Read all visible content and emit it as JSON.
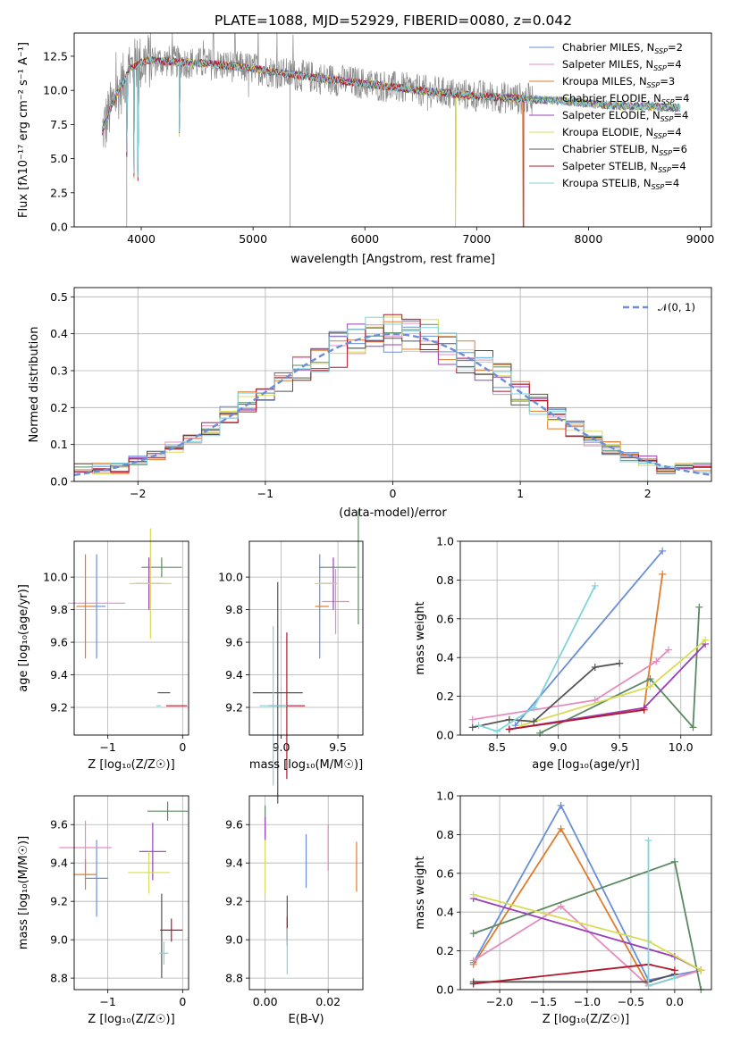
{
  "title": "PLATE=1088, MJD=52929, FIBERID=0080, z=0.042",
  "colors": {
    "c0": "#6a8fd8",
    "c1": "#e58cbf",
    "c2": "#e07b2a",
    "c3": "#5b8a62",
    "c4": "#9b3fb8",
    "c5": "#d8dc55",
    "c6": "#555555",
    "c7": "#b2182b",
    "c8": "#7fd3dc",
    "data": "#888888",
    "grid": "#b0b0b0",
    "normal": "#6a8fd8"
  },
  "chart_data": [
    {
      "type": "line",
      "name": "spectrum",
      "title": "PLATE=1088, MJD=52929, FIBERID=0080, z=0.042",
      "xlabel": "wavelength [Angstrom, rest frame]",
      "ylabel": "Flux [fλ10⁻¹⁷ erg cm⁻² s⁻¹ A⁻¹]",
      "xlim": [
        3400,
        9100
      ],
      "ylim": [
        0,
        14.2
      ],
      "xticks": [
        "4000",
        "5000",
        "6000",
        "7000",
        "8000",
        "9000"
      ],
      "yticks": [
        "0.0",
        "2.5",
        "5.0",
        "7.5",
        "10.0",
        "12.5"
      ],
      "grid": false,
      "legend_position": "top-right",
      "legend": [
        {
          "label": "Chabrier MILES, N",
          "sub": "SSP",
          "suffix": "=2"
        },
        {
          "label": "Salpeter MILES, N",
          "sub": "SSP",
          "suffix": "=4"
        },
        {
          "label": "Kroupa MILES, N",
          "sub": "SSP",
          "suffix": "=3"
        },
        {
          "label": "Chabrier ELODIE, N",
          "sub": "SSP",
          "suffix": "=4"
        },
        {
          "label": "Salpeter ELODIE, N",
          "sub": "SSP",
          "suffix": "=4"
        },
        {
          "label": "Kroupa ELODIE, N",
          "sub": "SSP",
          "suffix": "=4"
        },
        {
          "label": "Chabrier STELIB, N",
          "sub": "SSP",
          "suffix": "=6"
        },
        {
          "label": "Salpeter STELIB, N",
          "sub": "SSP",
          "suffix": "=4"
        },
        {
          "label": "Kroupa STELIB, N",
          "sub": "SSP",
          "suffix": "=4"
        }
      ],
      "continuum": [
        [
          3650,
          7.0
        ],
        [
          3750,
          9.2
        ],
        [
          3900,
          11.6
        ],
        [
          4050,
          12.2
        ],
        [
          4300,
          12.1
        ],
        [
          4500,
          12.0
        ],
        [
          4800,
          11.8
        ],
        [
          5000,
          11.6
        ],
        [
          5300,
          11.2
        ],
        [
          5600,
          10.9
        ],
        [
          5900,
          10.6
        ],
        [
          6200,
          10.3
        ],
        [
          6600,
          9.9
        ],
        [
          7000,
          9.6
        ],
        [
          7400,
          9.4
        ],
        [
          7800,
          9.2
        ],
        [
          8200,
          8.9
        ],
        [
          8600,
          8.8
        ],
        [
          8820,
          8.7
        ]
      ],
      "dips": [
        {
          "x": 3680,
          "y": 5.8
        },
        {
          "x": 3870,
          "y": 0.0
        },
        {
          "x": 3935,
          "y": 3.5
        },
        {
          "x": 3970,
          "y": 3.4
        },
        {
          "x": 4340,
          "y": 7.5
        },
        {
          "x": 4960,
          "y": 9.5
        },
        {
          "x": 5330,
          "y": 0.0
        },
        {
          "x": 6810,
          "y": 0.0
        },
        {
          "x": 7420,
          "y": 0.0
        },
        {
          "x": 6560,
          "y": 8.5
        }
      ],
      "noise_amplitude": 1.2,
      "noise_range": [
        3650,
        7500
      ]
    },
    {
      "type": "histogram",
      "name": "residuals",
      "xlabel": "(data-model)/error",
      "ylabel": "Normed distribution",
      "xlim": [
        -2.5,
        2.5
      ],
      "ylim": [
        0,
        0.525
      ],
      "xticks": [
        "−2",
        "−1",
        "0",
        "1",
        "2"
      ],
      "yticks": [
        "0.0",
        "0.1",
        "0.2",
        "0.3",
        "0.4",
        "0.5"
      ],
      "grid": true,
      "legend_position": "top-right",
      "legend": [
        {
          "label": "𝒩(0, 1)"
        }
      ],
      "bins": 35,
      "normal": {
        "mean": 0,
        "sigma": 1
      }
    },
    {
      "type": "errorbar",
      "name": "age-vs-Z",
      "xlabel": "Z [log₁₀(Z/Z☉)]",
      "ylabel": "age  [log₁₀(age/yr)]",
      "xlim": [
        -1.45,
        0.08
      ],
      "ylim": [
        9.03,
        10.22
      ],
      "xticks": [
        {
          "v": -1,
          "t": "−1"
        },
        {
          "v": 0,
          "t": "0"
        }
      ],
      "yticks": [
        {
          "v": 9.2,
          "t": "9.2"
        },
        {
          "v": 9.4,
          "t": "9.4"
        },
        {
          "v": 9.6,
          "t": "9.6"
        },
        {
          "v": 9.8,
          "t": "9.8"
        },
        {
          "v": 10.0,
          "t": "10.0"
        }
      ],
      "points": [
        {
          "c": "c0",
          "x": -1.15,
          "xe": 0.12,
          "y": 9.82,
          "ye": 0.32
        },
        {
          "c": "c1",
          "x": -1.15,
          "xe": 0.38,
          "y": 9.84,
          "ye": 0.0
        },
        {
          "c": "c2",
          "x": -1.3,
          "xe": 0.12,
          "y": 9.82,
          "ye": 0.32
        },
        {
          "c": "c3",
          "x": -0.28,
          "xe": 0.27,
          "y": 10.06,
          "ye": 0.06
        },
        {
          "c": "c4",
          "x": -0.45,
          "xe": 0.18,
          "y": 9.96,
          "ye": 0.16
        },
        {
          "c": "c5",
          "x": -0.43,
          "xe": 0.28,
          "y": 9.96,
          "ye": 0.34
        },
        {
          "c": "c6",
          "x": -0.25,
          "xe": 0.0,
          "y": 9.29,
          "ye": 0.0
        },
        {
          "c": "c7",
          "x": -0.08,
          "xe": 0.14,
          "y": 9.21,
          "ye": 0.0
        },
        {
          "c": "c8",
          "x": -0.32,
          "xe": 0.03,
          "y": 9.21,
          "ye": 0.0
        }
      ]
    },
    {
      "type": "errorbar",
      "name": "age-vs-mass",
      "xlabel": "mass [log₁₀(M/M☉)]",
      "ylabel": "",
      "xlim": [
        8.72,
        9.72
      ],
      "ylim": [
        9.03,
        10.22
      ],
      "xticks": [
        {
          "v": 9.0,
          "t": "9.0"
        },
        {
          "v": 9.5,
          "t": "9.5"
        }
      ],
      "yticks": [
        {
          "v": 9.2,
          "t": "9.2"
        },
        {
          "v": 9.4,
          "t": "9.4"
        },
        {
          "v": 9.6,
          "t": "9.6"
        },
        {
          "v": 9.8,
          "t": "9.8"
        },
        {
          "v": 10.0,
          "t": "10.0"
        }
      ],
      "points": [
        {
          "c": "c0",
          "x": 9.34,
          "xe": 0.0,
          "y": 9.82,
          "ye": 0.32
        },
        {
          "c": "c1",
          "x": 9.48,
          "xe": 0.12,
          "y": 9.85,
          "ye": 0.2
        },
        {
          "c": "c2",
          "x": 9.36,
          "xe": 0.06,
          "y": 9.82,
          "ye": 0.0
        },
        {
          "c": "c3",
          "x": 9.68,
          "xe": 0.0,
          "y": 10.06,
          "ye": 0.35
        },
        {
          "c": "c4",
          "x": 9.46,
          "xe": 0.0,
          "y": 9.96,
          "ye": 0.16
        },
        {
          "c": "c5",
          "x": 9.35,
          "xe": 0.0,
          "y": 9.96,
          "ye": 0.0
        },
        {
          "c": "c6",
          "x": 8.97,
          "xe": 0.22,
          "y": 9.29,
          "ye": 0.68
        },
        {
          "c": "c7",
          "x": 9.05,
          "xe": 0.16,
          "y": 9.21,
          "ye": 0.45
        },
        {
          "c": "c8",
          "x": 8.93,
          "xe": 0.12,
          "y": 9.21,
          "ye": 0.49
        },
        {
          "c": "c3",
          "x": 9.5,
          "xe": 0.16,
          "y": 10.06,
          "ye": 0.0
        },
        {
          "c": "c4",
          "x": 9.42,
          "xe": 0.07,
          "y": 9.96,
          "ye": 0.0
        },
        {
          "c": "c5",
          "x": 9.42,
          "xe": 0.07,
          "y": 9.96,
          "ye": 0.0
        }
      ]
    },
    {
      "type": "line",
      "name": "mass-weight-vs-age",
      "xlabel": "age  [log₁₀(age/yr)]",
      "ylabel": "mass weight",
      "xlim": [
        8.2,
        10.25
      ],
      "ylim": [
        0,
        1.0
      ],
      "xticks": [
        {
          "v": 8.5,
          "t": "8.5"
        },
        {
          "v": 9.0,
          "t": "9.0"
        },
        {
          "v": 9.5,
          "t": "9.5"
        },
        {
          "v": 10.0,
          "t": "10.0"
        }
      ],
      "yticks": [
        {
          "v": 0,
          "t": "0.0"
        },
        {
          "v": 0.2,
          "t": "0.2"
        },
        {
          "v": 0.4,
          "t": "0.4"
        },
        {
          "v": 0.6,
          "t": "0.6"
        },
        {
          "v": 0.8,
          "t": "0.8"
        },
        {
          "v": 1.0,
          "t": "1.0"
        }
      ],
      "grid": true,
      "series": [
        {
          "c": "c0",
          "x": [
            8.65,
            9.85
          ],
          "y": [
            0.05,
            0.95
          ]
        },
        {
          "c": "c2",
          "x": [
            8.6,
            9.7,
            9.85
          ],
          "y": [
            0.03,
            0.14,
            0.83
          ]
        },
        {
          "c": "c1",
          "x": [
            8.3,
            9.3,
            9.8,
            9.9
          ],
          "y": [
            0.08,
            0.18,
            0.38,
            0.44
          ]
        },
        {
          "c": "c3",
          "x": [
            8.85,
            9.75,
            10.1,
            10.15
          ],
          "y": [
            0.01,
            0.29,
            0.04,
            0.66
          ]
        },
        {
          "c": "c4",
          "x": [
            8.6,
            9.7,
            10.2
          ],
          "y": [
            0.03,
            0.14,
            0.47
          ]
        },
        {
          "c": "c5",
          "x": [
            8.7,
            9.75,
            10.2
          ],
          "y": [
            0.05,
            0.25,
            0.49
          ]
        },
        {
          "c": "c6",
          "x": [
            8.3,
            8.6,
            8.8,
            9.3,
            9.5
          ],
          "y": [
            0.04,
            0.08,
            0.07,
            0.35,
            0.37
          ]
        },
        {
          "c": "c7",
          "x": [
            8.6,
            9.7
          ],
          "y": [
            0.03,
            0.13
          ]
        },
        {
          "c": "c8",
          "x": [
            8.35,
            8.5,
            8.8,
            9.3
          ],
          "y": [
            0.05,
            0.02,
            0.14,
            0.77
          ]
        }
      ]
    },
    {
      "type": "errorbar",
      "name": "mass-vs-Z",
      "xlabel": "Z [log₁₀(Z/Z☉)]",
      "ylabel": "mass [log₁₀(M/M☉)]",
      "xlim": [
        -1.45,
        0.08
      ],
      "ylim": [
        8.74,
        9.75
      ],
      "xticks": [
        {
          "v": -1,
          "t": "−1"
        },
        {
          "v": 0,
          "t": "0"
        }
      ],
      "yticks": [
        {
          "v": 8.8,
          "t": "8.8"
        },
        {
          "v": 9.0,
          "t": "9.0"
        },
        {
          "v": 9.2,
          "t": "9.2"
        },
        {
          "v": 9.4,
          "t": "9.4"
        },
        {
          "v": 9.6,
          "t": "9.6"
        }
      ],
      "points": [
        {
          "c": "c0",
          "x": -1.15,
          "xe": 0.15,
          "y": 9.32,
          "ye": 0.2
        },
        {
          "c": "c1",
          "x": -1.3,
          "xe": 0.35,
          "y": 9.48,
          "ye": 0.14
        },
        {
          "c": "c2",
          "x": -1.3,
          "xe": 0.15,
          "y": 9.34,
          "ye": 0.08
        },
        {
          "c": "c3",
          "x": -0.2,
          "xe": 0.27,
          "y": 9.67,
          "ye": 0.05
        },
        {
          "c": "c4",
          "x": -0.4,
          "xe": 0.18,
          "y": 9.46,
          "ye": 0.15
        },
        {
          "c": "c5",
          "x": -0.45,
          "xe": 0.28,
          "y": 9.35,
          "ye": 0.11
        },
        {
          "c": "c6",
          "x": -0.28,
          "xe": 0.0,
          "y": 9.02,
          "ye": 0.22
        },
        {
          "c": "c7",
          "x": -0.15,
          "xe": 0.15,
          "y": 9.05,
          "ye": 0.06
        },
        {
          "c": "c8",
          "x": -0.25,
          "xe": 0.06,
          "y": 8.93,
          "ye": 0.06
        }
      ]
    },
    {
      "type": "errorbar",
      "name": "mass-vs-EBV",
      "xlabel": "E(B-V)",
      "ylabel": "",
      "xlim": [
        -0.005,
        0.031
      ],
      "ylim": [
        8.74,
        9.75
      ],
      "xticks": [
        {
          "v": 0.0,
          "t": "0.00"
        },
        {
          "v": 0.02,
          "t": "0.02"
        }
      ],
      "yticks": [
        {
          "v": 8.8,
          "t": "8.8"
        },
        {
          "v": 9.0,
          "t": "9.0"
        },
        {
          "v": 9.2,
          "t": "9.2"
        },
        {
          "v": 9.4,
          "t": "9.4"
        },
        {
          "v": 9.6,
          "t": "9.6"
        }
      ],
      "points": [
        {
          "c": "c0",
          "x": 0.013,
          "xe": 0.0,
          "y": 9.41,
          "ye": 0.14
        },
        {
          "c": "c1",
          "x": 0.02,
          "xe": 0.0,
          "y": 9.48,
          "ye": 0.12
        },
        {
          "c": "c2",
          "x": 0.029,
          "xe": 0.0,
          "y": 9.38,
          "ye": 0.13
        },
        {
          "c": "c3",
          "x": 0.0,
          "xe": 0.0,
          "y": 9.62,
          "ye": 0.08
        },
        {
          "c": "c4",
          "x": 0.0,
          "xe": 0.0,
          "y": 9.58,
          "ye": 0.06
        },
        {
          "c": "c5",
          "x": 0.0,
          "xe": 0.0,
          "y": 9.38,
          "ye": 0.14
        },
        {
          "c": "c6",
          "x": 0.007,
          "xe": 0.0,
          "y": 9.1,
          "ye": 0.13
        },
        {
          "c": "c7",
          "x": 0.007,
          "xe": 0.0,
          "y": 9.06,
          "ye": 0.06
        },
        {
          "c": "c8",
          "x": 0.007,
          "xe": 0.0,
          "y": 8.94,
          "ye": 0.12
        }
      ]
    },
    {
      "type": "line",
      "name": "mass-weight-vs-Z",
      "xlabel": "Z [log₁₀(Z/Z☉)]",
      "ylabel": "mass weight",
      "xlim": [
        -2.45,
        0.42
      ],
      "ylim": [
        0,
        1.0
      ],
      "xticks": [
        {
          "v": -2.0,
          "t": "−2.0"
        },
        {
          "v": -1.5,
          "t": "−1.5"
        },
        {
          "v": -1.0,
          "t": "−1.0"
        },
        {
          "v": -0.5,
          "t": "−0.5"
        },
        {
          "v": 0.0,
          "t": "0.0"
        }
      ],
      "yticks": [
        {
          "v": 0,
          "t": "0.0"
        },
        {
          "v": 0.2,
          "t": "0.2"
        },
        {
          "v": 0.4,
          "t": "0.4"
        },
        {
          "v": 0.6,
          "t": "0.6"
        },
        {
          "v": 0.8,
          "t": "0.8"
        },
        {
          "v": 1.0,
          "t": "1.0"
        }
      ],
      "grid": true,
      "series": [
        {
          "c": "c0",
          "x": [
            -2.3,
            -1.3,
            -0.3,
            0.3
          ],
          "y": [
            0.14,
            0.95,
            0.05,
            0.1
          ]
        },
        {
          "c": "c2",
          "x": [
            -2.3,
            -1.3,
            -0.3,
            0.3
          ],
          "y": [
            0.13,
            0.83,
            0.02,
            0.1
          ]
        },
        {
          "c": "c1",
          "x": [
            -2.3,
            -1.3,
            -0.3,
            0.3
          ],
          "y": [
            0.15,
            0.43,
            0.02,
            0.1
          ]
        },
        {
          "c": "c3",
          "x": [
            -2.3,
            0.0,
            0.3
          ],
          "y": [
            0.29,
            0.66,
            0.0
          ]
        },
        {
          "c": "c4",
          "x": [
            -2.3,
            0.0,
            0.3
          ],
          "y": [
            0.47,
            0.17,
            0.1
          ]
        },
        {
          "c": "c5",
          "x": [
            -2.3,
            -0.3,
            0.3
          ],
          "y": [
            0.49,
            0.25,
            0.1
          ]
        },
        {
          "c": "c6",
          "x": [
            -2.3,
            -0.3,
            0.0
          ],
          "y": [
            0.04,
            0.04,
            0.08
          ]
        },
        {
          "c": "c7",
          "x": [
            -2.3,
            -0.3,
            0.0
          ],
          "y": [
            0.03,
            0.13,
            0.1
          ]
        },
        {
          "c": "c8",
          "x": [
            -0.3,
            -0.3,
            0.0
          ],
          "y": [
            0.77,
            0.02,
            0.06
          ]
        }
      ]
    }
  ]
}
